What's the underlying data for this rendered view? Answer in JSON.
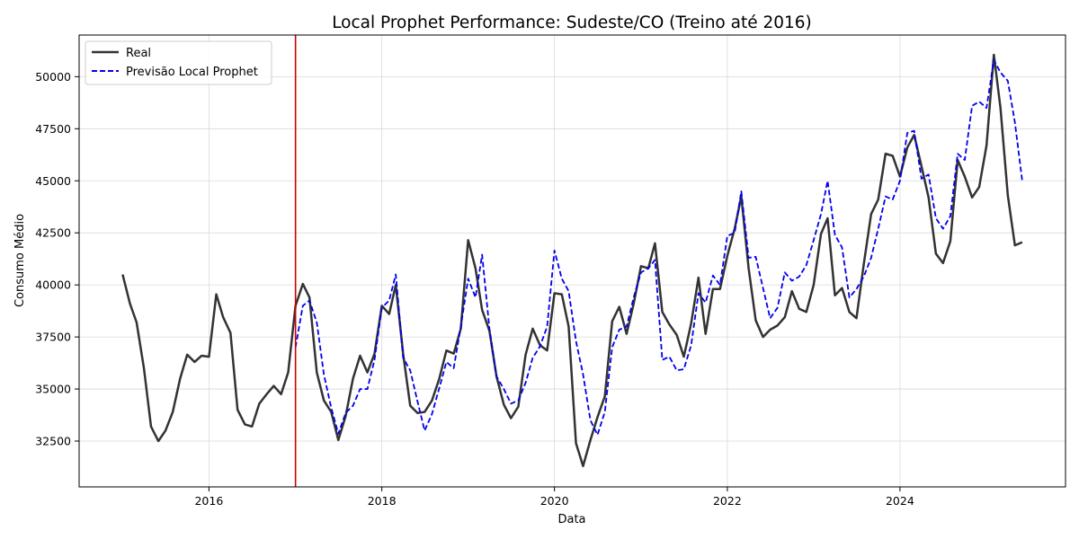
{
  "chart_data": {
    "type": "line",
    "title": "Local Prophet Performance: Sudeste/CO (Treino até 2016)",
    "xlabel": "Data",
    "ylabel": "Consumo Médio",
    "x_axis": "date",
    "xlim": [
      "2014-07-01",
      "2025-12-01"
    ],
    "ylim": [
      30300,
      52000
    ],
    "x_ticks": [
      "2016-01-01",
      "2018-01-01",
      "2020-01-01",
      "2022-01-01",
      "2024-01-01"
    ],
    "x_tick_labels": [
      "2016",
      "2018",
      "2020",
      "2022",
      "2024"
    ],
    "y_ticks": [
      32500,
      35000,
      37500,
      40000,
      42500,
      45000,
      47500,
      50000
    ],
    "y_tick_labels": [
      "32500",
      "35000",
      "37500",
      "40000",
      "42500",
      "45000",
      "47500",
      "50000"
    ],
    "grid": true,
    "legend_position": "top-left",
    "vline": {
      "x": "2017-01-01",
      "color": "#cc0000"
    },
    "series": [
      {
        "name": "Real",
        "color": "#333333",
        "dash": "solid",
        "start": "2015-01",
        "values": [
          40500,
          39100,
          38200,
          36000,
          33200,
          32500,
          33000,
          33900,
          35500,
          36650,
          36300,
          36600,
          36550,
          39550,
          38450,
          37700,
          34000,
          33300,
          33200,
          34300,
          34750,
          35150,
          34750,
          35800,
          39000,
          40050,
          39400,
          35800,
          34450,
          33900,
          32550,
          33700,
          35500,
          36600,
          35800,
          36700,
          39000,
          38600,
          40000,
          36700,
          34200,
          33850,
          33900,
          34450,
          35500,
          36850,
          36700,
          37900,
          42150,
          40800,
          38800,
          37800,
          35600,
          34250,
          33600,
          34150,
          36650,
          37900,
          37100,
          36850,
          39600,
          39550,
          38000,
          32400,
          31300,
          32550,
          33650,
          34650,
          38250,
          38950,
          37650,
          39100,
          40900,
          40800,
          42000,
          38700,
          38100,
          37600,
          36550,
          38150,
          40350,
          37650,
          39800,
          39800,
          41400,
          42700,
          44250,
          40800,
          38300,
          37500,
          37850,
          38050,
          38450,
          39700,
          38850,
          38700,
          40000,
          42450,
          43200,
          39500,
          39850,
          38700,
          38400,
          41000,
          43400,
          44100,
          46300,
          46200,
          45200,
          46600,
          47200,
          45700,
          44200,
          41500,
          41050,
          42100,
          46000,
          45200,
          44200,
          44700,
          46700,
          51050,
          48500,
          44300,
          41900,
          42050
        ]
      },
      {
        "name": "Previsão Local Prophet",
        "color": "#0000ee",
        "dash": "dashed",
        "start": "2017-01",
        "values": [
          37000,
          39000,
          39250,
          38200,
          35700,
          34100,
          32850,
          33850,
          34200,
          35000,
          35000,
          36400,
          38900,
          39250,
          40500,
          36500,
          35900,
          34400,
          33000,
          33800,
          35050,
          36300,
          36000,
          38000,
          40300,
          39400,
          41450,
          37900,
          35600,
          35000,
          34300,
          34450,
          35300,
          36500,
          37050,
          38000,
          41650,
          40300,
          39700,
          37300,
          35700,
          33500,
          32800,
          33900,
          37000,
          37850,
          38000,
          39400,
          40600,
          40800,
          41200,
          36400,
          36550,
          35900,
          35950,
          37100,
          39600,
          39150,
          40450,
          40000,
          42350,
          42500,
          44500,
          41300,
          41350,
          39850,
          38400,
          38900,
          40600,
          40200,
          40400,
          40950,
          42150,
          43400,
          45000,
          42400,
          41800,
          39400,
          39800,
          40400,
          41300,
          42700,
          44250,
          44100,
          45000,
          47300,
          47400,
          45100,
          45300,
          43200,
          42700,
          43300,
          46300,
          46000,
          48600,
          48800,
          48500,
          50800,
          50200,
          49800,
          47800,
          45000
        ]
      }
    ]
  }
}
